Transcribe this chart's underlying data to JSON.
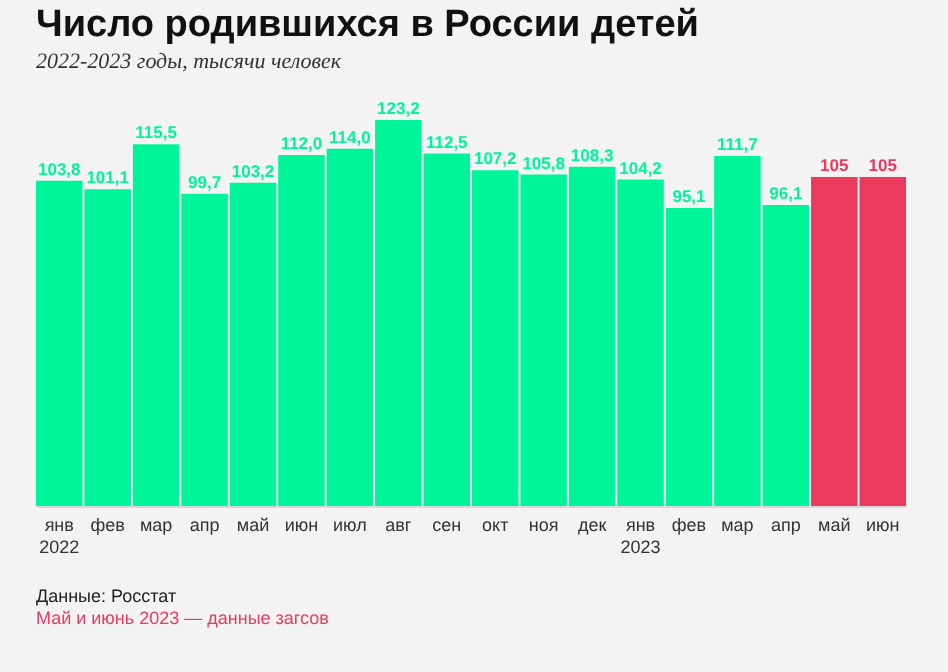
{
  "chart_data": {
    "type": "bar",
    "title": "Число родившихся в России детей",
    "subtitle": "2022-2023 годы, тысячи человек",
    "categories": [
      "янв\n2022",
      "фев",
      "мар",
      "апр",
      "май",
      "июн",
      "июл",
      "авг",
      "сен",
      "окт",
      "ноя",
      "дек",
      "янв\n2023",
      "фев ",
      "мар ",
      "апр ",
      "май ",
      "июн "
    ],
    "values": [
      103.8,
      101.1,
      115.5,
      99.7,
      103.2,
      112.0,
      114.0,
      123.2,
      112.5,
      107.2,
      105.8,
      108.3,
      104.2,
      95.1,
      111.7,
      96.1,
      105,
      105
    ],
    "value_labels": [
      "103,8",
      "101,1",
      "115,5",
      "99,7",
      "103,2",
      "112,0",
      "114,0",
      "123,2",
      "112,5",
      "107,2",
      "105,8",
      "108,3",
      "104,2",
      "95,1",
      "111,7",
      "96,1",
      "105",
      "105"
    ],
    "colors": [
      "#00f59b",
      "#00f59b",
      "#00f59b",
      "#00f59b",
      "#00f59b",
      "#00f59b",
      "#00f59b",
      "#00f59b",
      "#00f59b",
      "#00f59b",
      "#00f59b",
      "#00f59b",
      "#00f59b",
      "#00f59b",
      "#00f59b",
      "#00f59b",
      "#eb3a5e",
      "#eb3a5e"
    ],
    "grid": false,
    "tick_labels": "x",
    "annotations": [
      "Данные: Росстат",
      "Май и июнь 2023 — данные загсов"
    ]
  }
}
